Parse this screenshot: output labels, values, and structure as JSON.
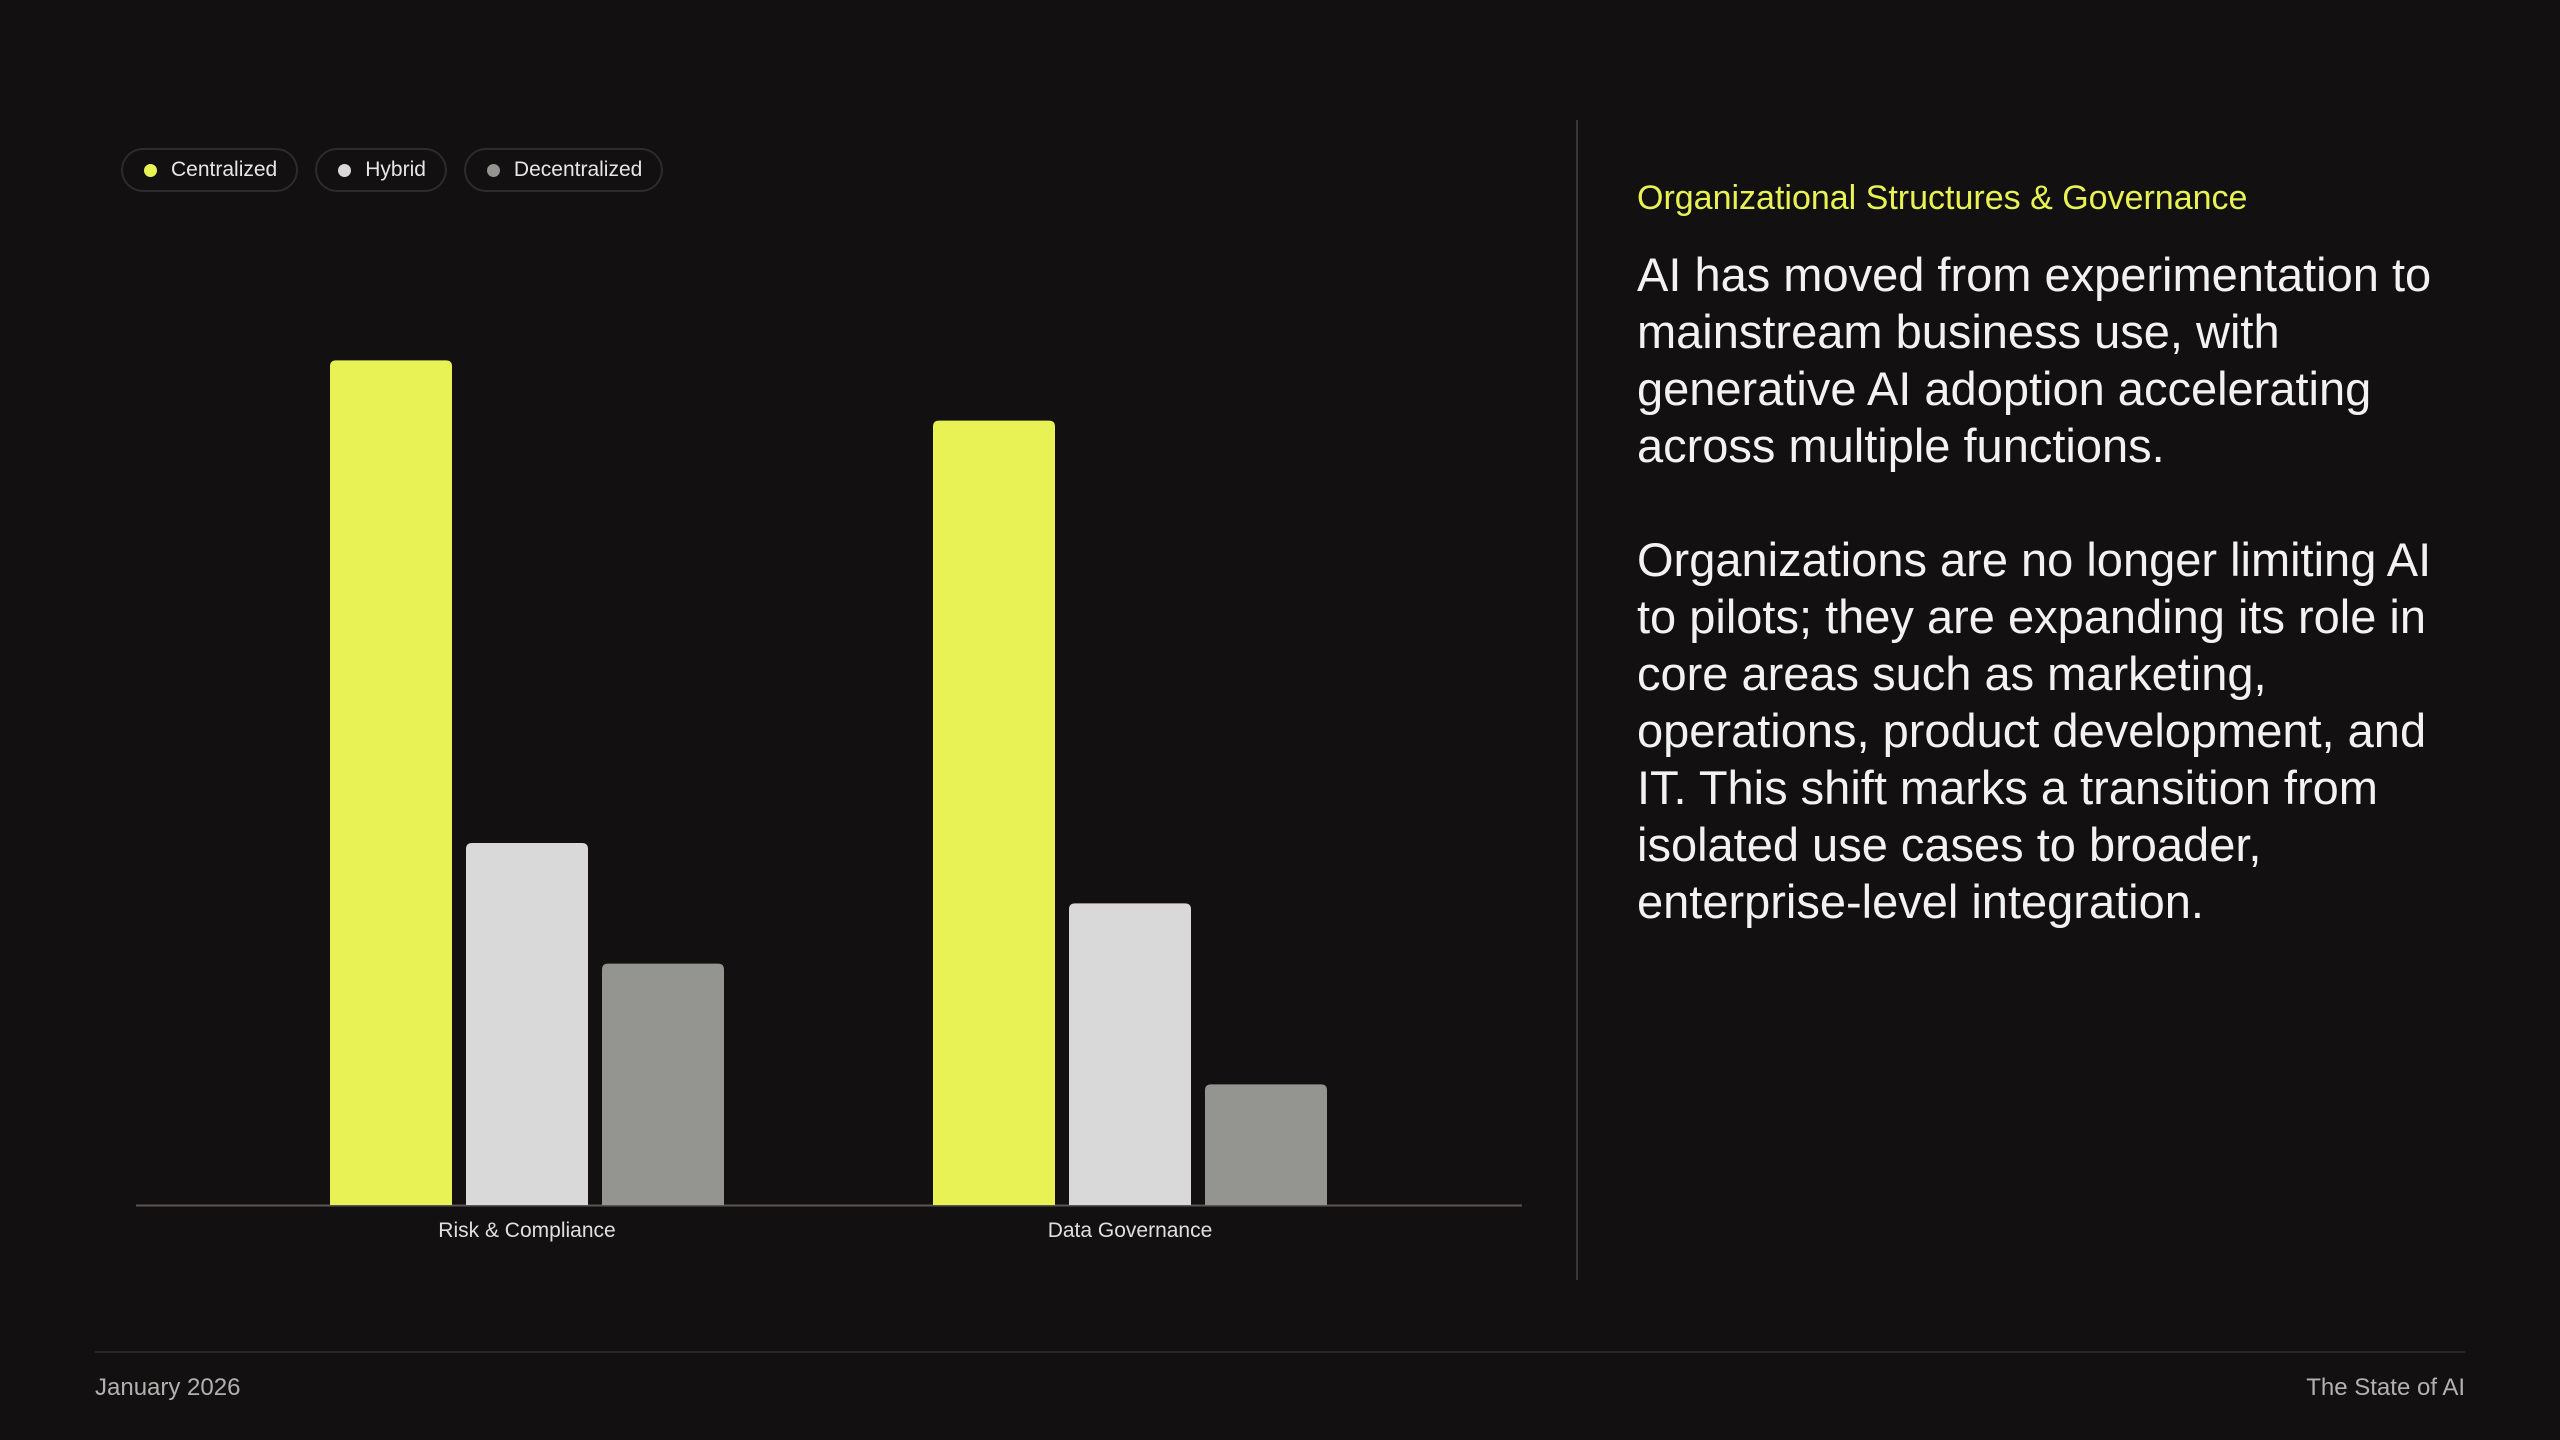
{
  "colors": {
    "background": "#121010",
    "accent": "#e8f255",
    "centralized": "#e8f255",
    "hybrid": "#d9d9d9",
    "decentralized": "#949490"
  },
  "legend": {
    "items": [
      {
        "label": "Centralized",
        "color": "#e8f255"
      },
      {
        "label": "Hybrid",
        "color": "#d9d9d9"
      },
      {
        "label": "Decentralized",
        "color": "#949490"
      }
    ]
  },
  "chart_data": {
    "type": "bar",
    "categories": [
      "Risk & Compliance",
      "Data Governance"
    ],
    "series": [
      {
        "name": "Centralized",
        "color": "#e8f255",
        "values": [
          70,
          65
        ]
      },
      {
        "name": "Hybrid",
        "color": "#d9d9d9",
        "values": [
          30,
          25
        ]
      },
      {
        "name": "Decentralized",
        "color": "#949490",
        "values": [
          20,
          10
        ]
      }
    ],
    "ylim": [
      0,
      75
    ],
    "grid": false,
    "legend_position": "top-left"
  },
  "panel": {
    "title": "Organizational Structures & Governance",
    "paragraph1": "AI has moved from experimentation to mainstream business use, with generative AI adoption accelerating across multiple functions.",
    "paragraph2": "Organizations are no longer limiting AI to pilots; they are expanding its role in core areas such as marketing, operations, product development, and IT. This shift marks a transition from isolated use cases to broader, enterprise-level integration."
  },
  "footer": {
    "date": "January 2026",
    "report": "The State of AI"
  }
}
